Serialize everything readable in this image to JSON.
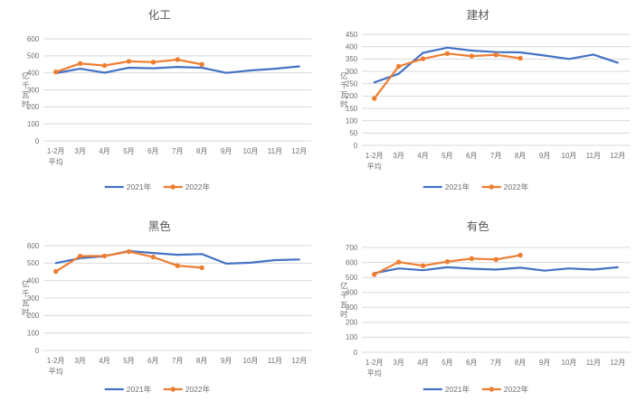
{
  "colors": {
    "background": "#ffffff",
    "series_2021": "#4472C4",
    "series_2022": "#ED7D31",
    "gridline": "#D9D9D9",
    "axis_text": "#6e6e6e",
    "title_text": "#595959"
  },
  "legend": {
    "position": "bottom",
    "items": [
      {
        "label": "2021年",
        "color": "#4472C4",
        "marker": false
      },
      {
        "label": "2022年",
        "color": "#ED7D31",
        "marker": true
      }
    ]
  },
  "chart_data": [
    {
      "type": "line",
      "title": "化工",
      "ylabel": "亿千瓦时",
      "xlabel": "",
      "categories": [
        "1-2月\n平均",
        "3月",
        "4月",
        "5月",
        "6月",
        "7月",
        "8月",
        "9月",
        "10月",
        "11月",
        "12月"
      ],
      "ylim": [
        0,
        600
      ],
      "ytick_step": 100,
      "grid": true,
      "legend_position": "bottom",
      "series": [
        {
          "name": "2021年",
          "color": "#4472C4",
          "marker": false,
          "values": [
            398,
            424,
            401,
            430,
            427,
            435,
            430,
            400,
            414,
            424,
            438
          ]
        },
        {
          "name": "2022年",
          "color": "#ED7D31",
          "marker": true,
          "values": [
            405,
            455,
            443,
            468,
            463,
            478,
            450
          ]
        }
      ]
    },
    {
      "type": "line",
      "title": "建材",
      "ylabel": "亿千瓦时",
      "xlabel": "",
      "categories": [
        "1-2月\n平均",
        "3月",
        "4月",
        "5月",
        "6月",
        "7月",
        "8月",
        "9月",
        "10月",
        "11月",
        "12月"
      ],
      "ylim": [
        0,
        450
      ],
      "ytick_step": 50,
      "grid": true,
      "legend_position": "bottom",
      "series": [
        {
          "name": "2021年",
          "color": "#4472C4",
          "marker": false,
          "values": [
            255,
            290,
            375,
            396,
            384,
            378,
            377,
            364,
            350,
            368,
            335
          ]
        },
        {
          "name": "2022年",
          "color": "#ED7D31",
          "marker": true,
          "values": [
            190,
            320,
            351,
            372,
            362,
            367,
            353
          ]
        }
      ]
    },
    {
      "type": "line",
      "title": "黑色",
      "ylabel": "亿千瓦时",
      "xlabel": "",
      "categories": [
        "1-2月\n平均",
        "3月",
        "4月",
        "5月",
        "6月",
        "7月",
        "8月",
        "9月",
        "10月",
        "11月",
        "12月"
      ],
      "ylim": [
        0,
        600
      ],
      "ytick_step": 100,
      "grid": true,
      "legend_position": "bottom",
      "series": [
        {
          "name": "2021年",
          "color": "#4472C4",
          "marker": false,
          "values": [
            500,
            528,
            540,
            569,
            558,
            548,
            552,
            497,
            502,
            517,
            521
          ]
        },
        {
          "name": "2022年",
          "color": "#ED7D31",
          "marker": true,
          "values": [
            452,
            540,
            541,
            566,
            535,
            485,
            474
          ]
        }
      ]
    },
    {
      "type": "line",
      "title": "有色",
      "ylabel": "亿千瓦时",
      "xlabel": "",
      "categories": [
        "1-2月\n平均",
        "3月",
        "4月",
        "5月",
        "6月",
        "7月",
        "8月",
        "9月",
        "10月",
        "11月",
        "12月"
      ],
      "ylim": [
        0,
        700
      ],
      "ytick_step": 100,
      "grid": true,
      "legend_position": "bottom",
      "series": [
        {
          "name": "2021年",
          "color": "#4472C4",
          "marker": false,
          "values": [
            528,
            560,
            548,
            568,
            558,
            552,
            565,
            545,
            560,
            552,
            568
          ]
        },
        {
          "name": "2022年",
          "color": "#ED7D31",
          "marker": true,
          "values": [
            520,
            602,
            578,
            605,
            626,
            620,
            648
          ]
        }
      ]
    }
  ]
}
